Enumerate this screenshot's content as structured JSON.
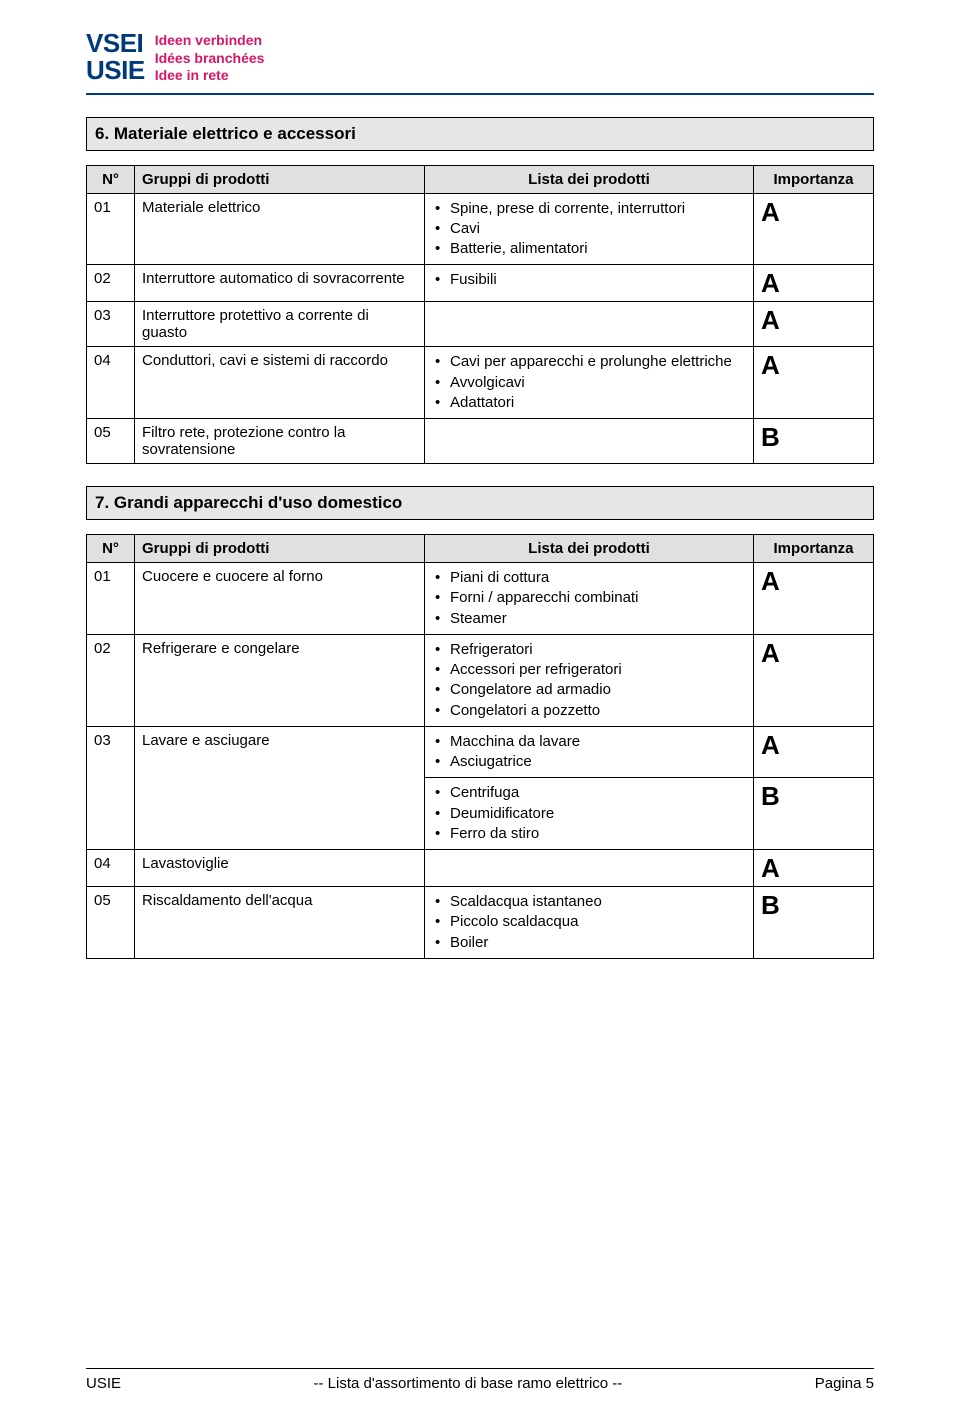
{
  "logo": {
    "line1_a": "VS",
    "line1_b": "EI",
    "line2_a": "US",
    "line2_b": "IE",
    "taglines": [
      "Ideen verbinden",
      "Idées branchées",
      "Idee in rete"
    ]
  },
  "columns": {
    "n": "N°",
    "group": "Gruppi di prodotti",
    "products": "Lista dei prodotti",
    "importance": "Importanza"
  },
  "section6": {
    "title": "6.   Materiale elettrico e accessori",
    "rows": [
      {
        "n": "01",
        "group": "Materiale elettrico",
        "products": [
          "Spine, prese di corrente, interruttori",
          "Cavi",
          "Batterie, alimentatori"
        ],
        "importance": "A"
      },
      {
        "n": "02",
        "group": "Interruttore automatico di sovracorrente",
        "products": [
          "Fusibili"
        ],
        "importance": "A"
      },
      {
        "n": "03",
        "group": "Interruttore protettivo a corrente di guasto",
        "products": [],
        "importance": "A"
      },
      {
        "n": "04",
        "group": "Conduttori, cavi e sistemi di raccordo",
        "products": [
          "Cavi per apparecchi e prolunghe elettriche",
          "Avvolgicavi",
          "Adattatori"
        ],
        "importance": "A"
      },
      {
        "n": "05",
        "group": "Filtro rete, protezione contro la sovratensione",
        "products": [],
        "importance": "B"
      }
    ]
  },
  "section7": {
    "title": "7.   Grandi apparecchi d'uso domestico",
    "rows": [
      {
        "n": "01",
        "group": "Cuocere e cuocere al forno",
        "products": [
          "Piani di cottura",
          "Forni / apparecchi combinati",
          "Steamer"
        ],
        "importance": "A",
        "rowspan": 1
      },
      {
        "n": "02",
        "group": "Refrigerare e congelare",
        "products": [
          "Refrigeratori",
          "Accessori per refrigeratori",
          "Congelatore ad armadio",
          "Congelatori a pozzetto"
        ],
        "importance": "A",
        "rowspan": 1
      },
      {
        "n": "03",
        "group": "Lavare e asciugare",
        "subrows": [
          {
            "products": [
              "Macchina da lavare",
              "Asciugatrice"
            ],
            "importance": "A"
          },
          {
            "products": [
              "Centrifuga",
              "Deumidificatore",
              "Ferro da stiro"
            ],
            "importance": "B"
          }
        ]
      },
      {
        "n": "04",
        "group": "Lavastoviglie",
        "products": [],
        "importance": "A",
        "rowspan": 1
      },
      {
        "n": "05",
        "group": "Riscaldamento dell'acqua",
        "products": [
          "Scaldacqua istantaneo",
          "Piccolo scaldacqua",
          "Boiler"
        ],
        "importance": "B",
        "rowspan": 1
      }
    ]
  },
  "footer": {
    "left": "USIE",
    "center": "-- Lista d'assortimento di base ramo elettrico --",
    "right": "Pagina 5"
  }
}
